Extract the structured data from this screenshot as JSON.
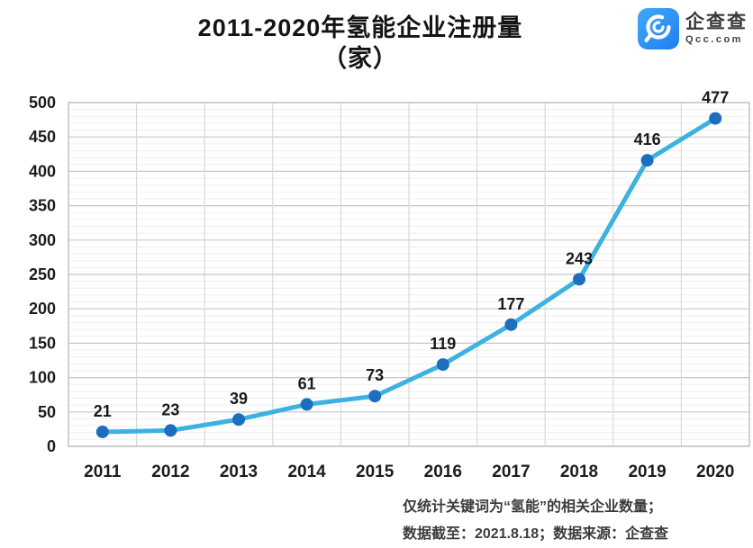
{
  "header": {
    "title_line1": "2011-2020年氢能企业注册量",
    "title_line2": "（家）",
    "logo": {
      "name": "企查查",
      "domain": "Qcc.com",
      "brand_color": "#2e93f3",
      "icon": "qcc-magnifier-icon"
    }
  },
  "chart_data": {
    "type": "line",
    "title": "2011-2020年氢能企业注册量（家）",
    "categories": [
      "2011",
      "2012",
      "2013",
      "2014",
      "2015",
      "2016",
      "2017",
      "2018",
      "2019",
      "2020"
    ],
    "values": [
      21,
      23,
      39,
      61,
      73,
      119,
      177,
      243,
      416,
      477
    ],
    "ylim": [
      0,
      500
    ],
    "ytick_step": 50,
    "minor_step": 10,
    "grid": true,
    "legend": "none",
    "line_color": "#3cb2e2",
    "marker_color": "#1e6ebe",
    "major_grid_color": "#c6c6c6",
    "minor_grid_color": "#efefef",
    "vertical_grid_color": "#d9d9d9",
    "border_color": "#c0c0c0",
    "tick_label_color": "#1c1c1c",
    "data_label_color": "#1a1a1a"
  },
  "footer": {
    "note_line1": "仅统计关键词为“氢能”的相关企业数量；",
    "note_line2": "数据截至：2021.8.18；数据来源：企查查"
  }
}
